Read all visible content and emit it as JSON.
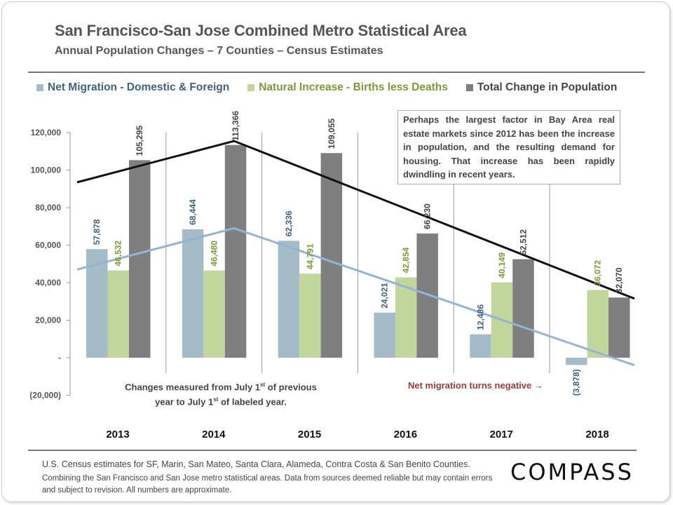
{
  "title": "San Francisco-San Jose Combined Metro Statistical Area",
  "subtitle": "Annual Population Changes – 7 Counties – Census Estimates",
  "legend": [
    {
      "label": "Net Migration - Domestic & Foreign",
      "color": "#a5bcc8",
      "text_color": "#3f6282"
    },
    {
      "label": "Natural Increase - Births less Deaths",
      "color": "#c1d69c",
      "text_color": "#7a9a3a"
    },
    {
      "label": "Total Change in Population",
      "color": "#7f7f7f",
      "text_color": "#444444"
    }
  ],
  "callout": "Perhaps the largest factor in Bay Area real estate markets since 2012 has been the increase in population, and the resulting demand for housing. That increase has been rapidly dwindling in recent years.",
  "note": {
    "line1_a": "Changes measured from July 1",
    "line1_sup": "st",
    "line1_b": " of previous",
    "line2_a": "year to July 1",
    "line2_sup": "st",
    "line2_b": " of labeled year."
  },
  "neg_note": "Net migration turns negative →",
  "footer": {
    "line1": "U.S. Census estimates for SF, Marin, San Mateo, Santa Clara, Alameda, Contra Costa & San Benito Counties.",
    "line2": "Combining the San Francisco and San Jose metro statistical areas. Data from sources deemed reliable but may contain errors and subject to revision. All numbers are approximate."
  },
  "logo": "COMPASS",
  "chart_data": {
    "type": "bar",
    "title": "San Francisco-San Jose Combined Metro Statistical Area",
    "subtitle": "Annual Population Changes – 7 Counties – Census Estimates",
    "categories": [
      "2013",
      "2014",
      "2015",
      "2016",
      "2017",
      "2018"
    ],
    "series": [
      {
        "name": "Net Migration - Domestic & Foreign",
        "color": "#a5bcc8",
        "label_color": "#3f6282",
        "values": [
          57878,
          68444,
          62336,
          24021,
          12486,
          -3878
        ],
        "labels": [
          "57,878",
          "68,444",
          "62,336",
          "24,021",
          "12,486",
          "(3,878)"
        ]
      },
      {
        "name": "Natural Increase - Births less Deaths",
        "color": "#c1d69c",
        "label_color": "#7a9a3a",
        "values": [
          46532,
          46480,
          44791,
          42854,
          40149,
          36072
        ],
        "labels": [
          "46,532",
          "46,480",
          "44,791",
          "42,854",
          "40,149",
          "36,072"
        ]
      },
      {
        "name": "Total Change in Population",
        "color": "#7f7f7f",
        "label_color": "#444444",
        "values": [
          105295,
          113366,
          109055,
          66230,
          52512,
          32070
        ],
        "labels": [
          "105,295",
          "113,366",
          "109,055",
          "66,230",
          "52,512",
          "32,070"
        ]
      }
    ],
    "trendlines": [
      {
        "name": "Total change trend",
        "color": "#111111",
        "points": [
          [
            0,
            93500
          ],
          [
            1,
            115500
          ],
          [
            5,
            31500
          ]
        ]
      },
      {
        "name": "Net migration trend",
        "color": "#94b4d6",
        "points": [
          [
            0,
            47000
          ],
          [
            1,
            69000
          ],
          [
            5,
            -4000
          ]
        ]
      }
    ],
    "xlabel": "",
    "ylabel": "",
    "ylim": [
      -20000,
      120000
    ],
    "yticks": [
      -20000,
      0,
      20000,
      40000,
      60000,
      80000,
      100000,
      120000
    ],
    "ytick_labels": [
      "(20,000)",
      "-",
      "20,000",
      "40,000",
      "60,000",
      "80,000",
      "100,000",
      "120,000"
    ],
    "grid": false,
    "legend_position": "top"
  }
}
